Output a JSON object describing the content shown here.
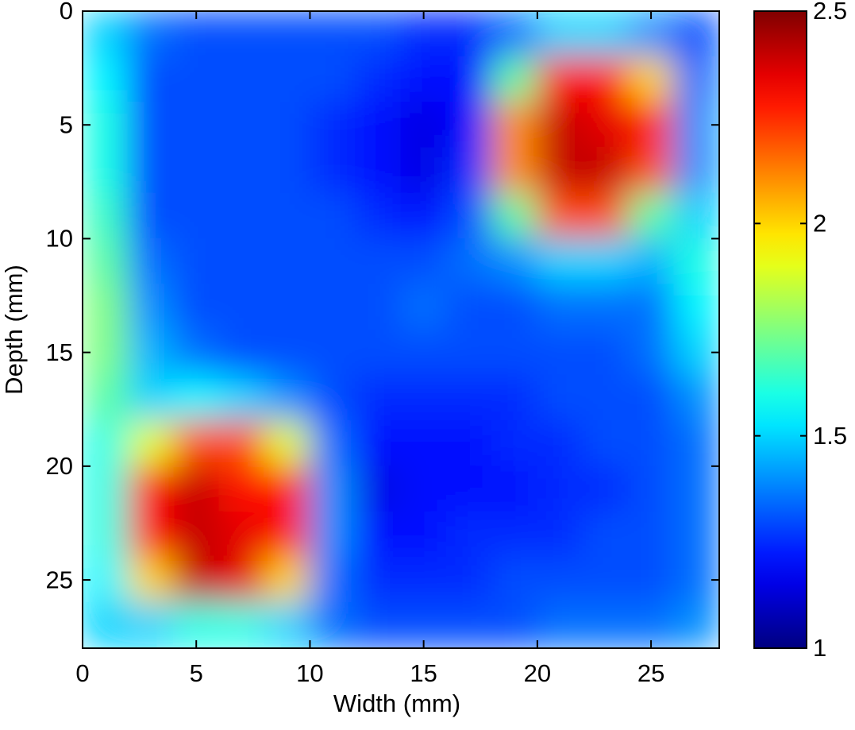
{
  "chart_data": {
    "type": "heatmap",
    "x_label": "Width (mm)",
    "y_label": "Depth (mm)",
    "x": [
      1,
      3,
      5,
      7,
      9,
      11,
      13,
      15,
      17,
      19,
      21,
      23,
      25,
      27
    ],
    "y": [
      1,
      3,
      5,
      7,
      9,
      11,
      13,
      15,
      17,
      19,
      21,
      23,
      25,
      27
    ],
    "values": [
      [
        1.5,
        1.35,
        1.3,
        1.3,
        1.3,
        1.3,
        1.3,
        1.25,
        1.25,
        1.35,
        1.5,
        1.5,
        1.4,
        1.3
      ],
      [
        1.55,
        1.3,
        1.3,
        1.3,
        1.3,
        1.3,
        1.25,
        1.2,
        1.2,
        1.7,
        2.3,
        2.3,
        2.0,
        1.35
      ],
      [
        1.6,
        1.3,
        1.3,
        1.3,
        1.3,
        1.25,
        1.2,
        1.15,
        1.2,
        2.1,
        2.4,
        2.35,
        2.3,
        1.4
      ],
      [
        1.6,
        1.3,
        1.3,
        1.3,
        1.3,
        1.25,
        1.2,
        1.15,
        1.25,
        2.1,
        2.4,
        2.4,
        2.2,
        1.4
      ],
      [
        1.65,
        1.3,
        1.3,
        1.3,
        1.3,
        1.3,
        1.25,
        1.2,
        1.3,
        1.7,
        2.2,
        2.2,
        1.7,
        1.5
      ],
      [
        1.7,
        1.35,
        1.3,
        1.3,
        1.3,
        1.3,
        1.3,
        1.3,
        1.35,
        1.4,
        1.5,
        1.5,
        1.45,
        1.6
      ],
      [
        1.75,
        1.4,
        1.3,
        1.3,
        1.3,
        1.3,
        1.3,
        1.35,
        1.3,
        1.3,
        1.35,
        1.35,
        1.35,
        1.55
      ],
      [
        1.75,
        1.45,
        1.35,
        1.3,
        1.3,
        1.3,
        1.3,
        1.3,
        1.3,
        1.3,
        1.3,
        1.3,
        1.35,
        1.5
      ],
      [
        1.7,
        1.5,
        1.55,
        1.5,
        1.4,
        1.3,
        1.25,
        1.25,
        1.25,
        1.25,
        1.3,
        1.3,
        1.3,
        1.4
      ],
      [
        1.6,
        1.9,
        2.2,
        2.2,
        1.9,
        1.35,
        1.2,
        1.2,
        1.2,
        1.25,
        1.25,
        1.3,
        1.3,
        1.35
      ],
      [
        1.6,
        2.3,
        2.4,
        2.3,
        2.3,
        1.4,
        1.15,
        1.2,
        1.2,
        1.2,
        1.25,
        1.25,
        1.3,
        1.35
      ],
      [
        1.6,
        2.3,
        2.4,
        2.35,
        2.3,
        1.4,
        1.2,
        1.2,
        1.25,
        1.25,
        1.25,
        1.3,
        1.3,
        1.35
      ],
      [
        1.55,
        2.0,
        2.4,
        2.35,
        2.0,
        1.35,
        1.25,
        1.25,
        1.25,
        1.3,
        1.3,
        1.3,
        1.3,
        1.35
      ],
      [
        1.5,
        1.5,
        1.6,
        1.6,
        1.5,
        1.35,
        1.3,
        1.3,
        1.3,
        1.3,
        1.35,
        1.35,
        1.35,
        1.4
      ]
    ],
    "xlim": [
      0,
      28
    ],
    "ylim": [
      0,
      28
    ],
    "y_reversed": true,
    "xticks": [
      0,
      5,
      10,
      15,
      20,
      25
    ],
    "yticks": [
      0,
      5,
      10,
      15,
      20,
      25
    ],
    "colormap": "jet",
    "clim": [
      1,
      2.5
    ],
    "cticks": [
      1,
      1.5,
      2,
      2.5
    ]
  }
}
